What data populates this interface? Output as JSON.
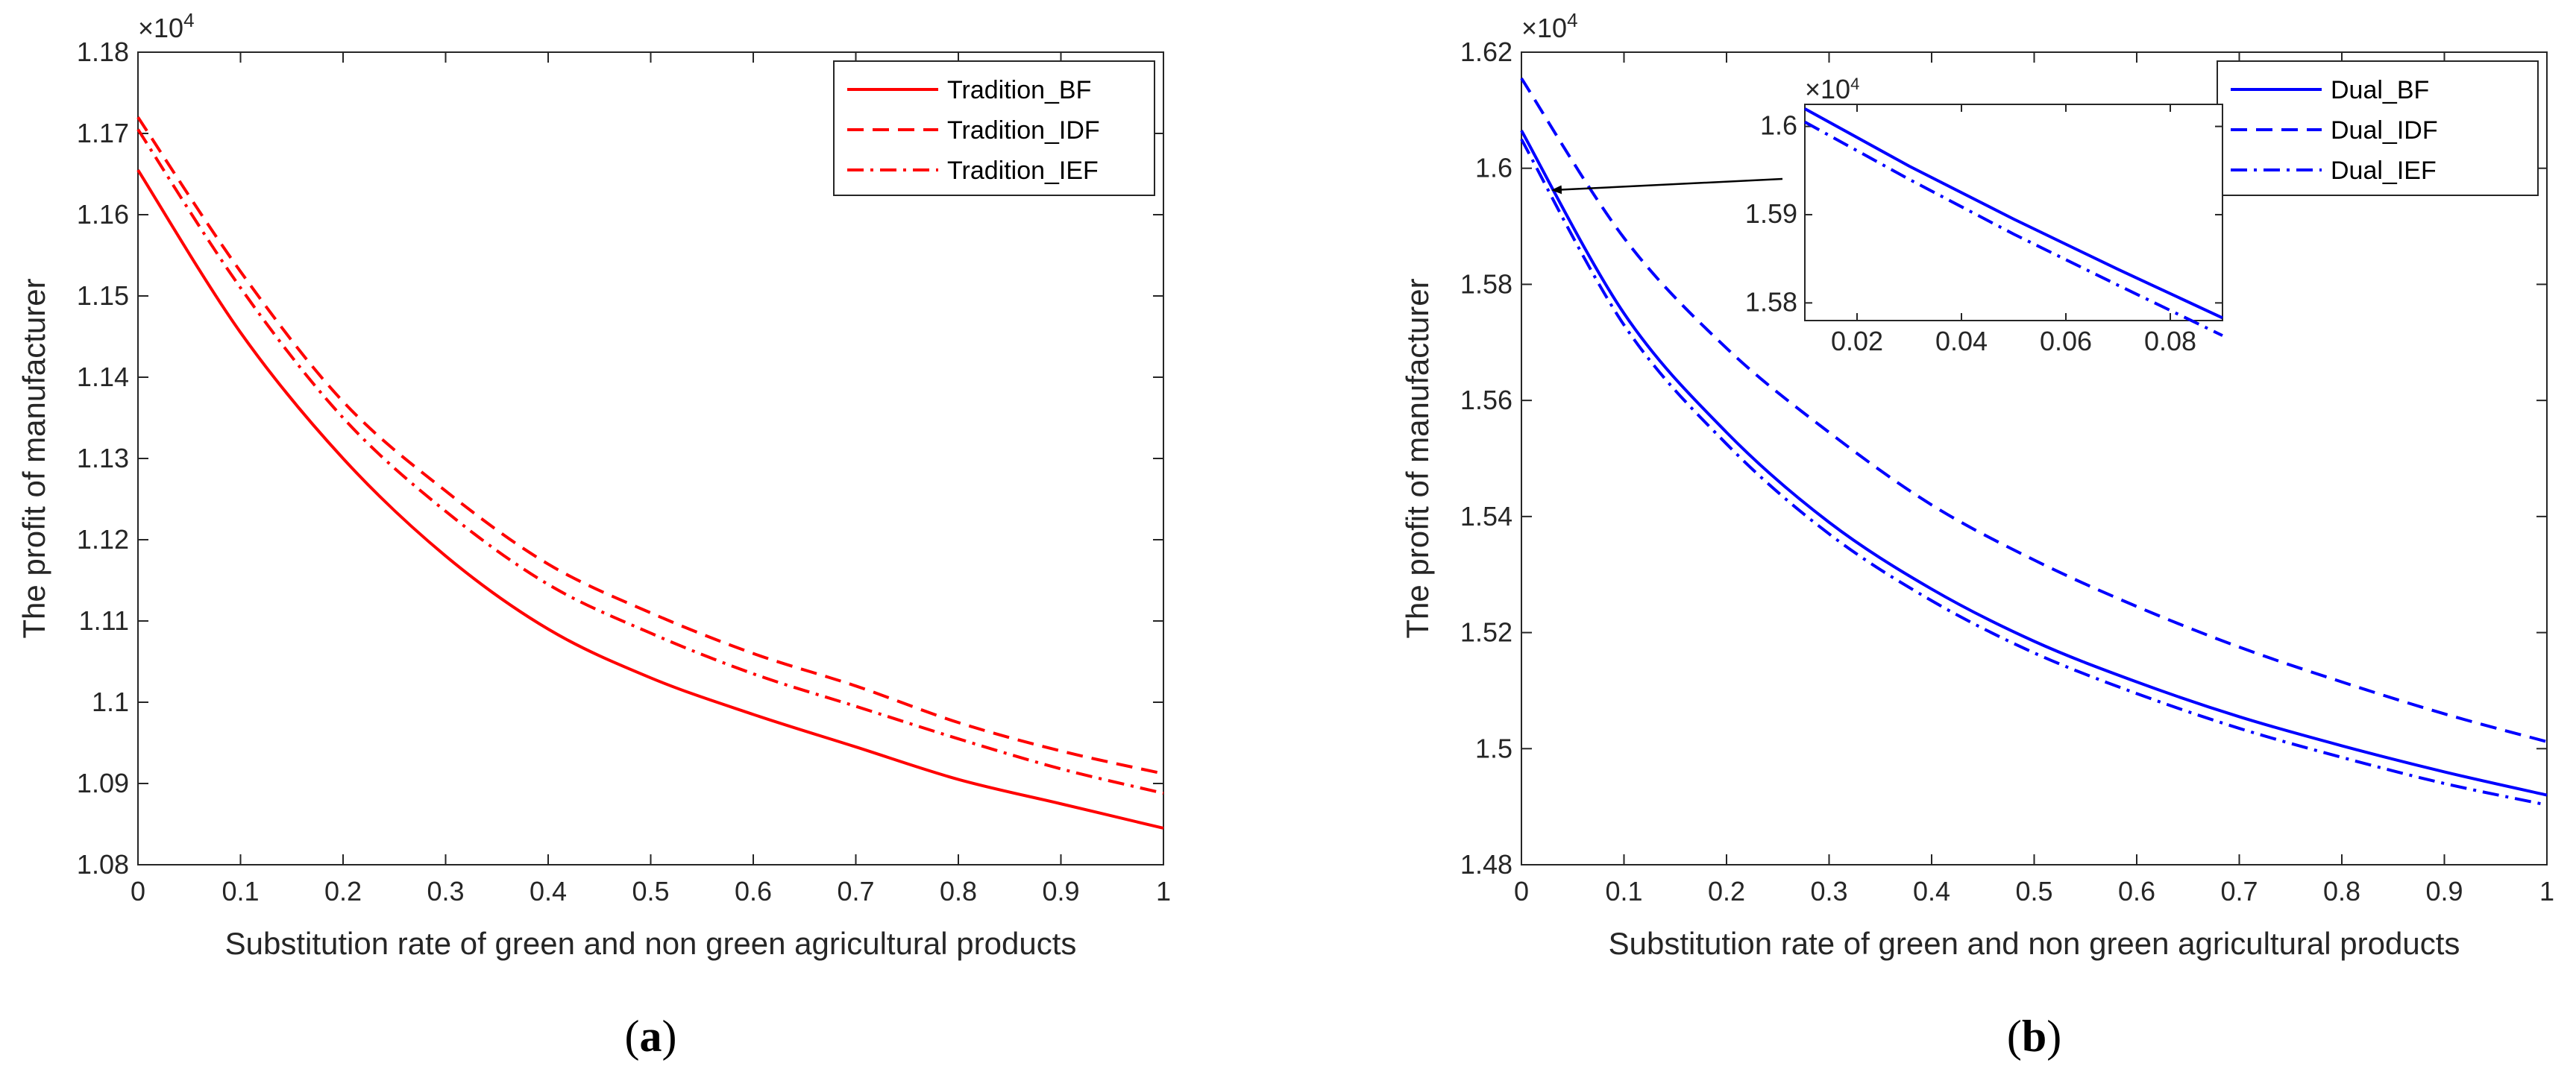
{
  "chart_data": [
    {
      "type": "line",
      "panel": "a",
      "caption_letter": "a",
      "xlabel": "Substitution rate of green and non green agricultural products",
      "ylabel": "The profit of manufacturer",
      "y_exponent_label": "×10",
      "y_exponent_power": "4",
      "xlim": [
        0,
        1
      ],
      "ylim": [
        1.08,
        1.18
      ],
      "x_ticks": [
        "0",
        "0.1",
        "0.2",
        "0.3",
        "0.4",
        "0.5",
        "0.6",
        "0.7",
        "0.8",
        "0.9",
        "1"
      ],
      "y_ticks": [
        "1.08",
        "1.09",
        "1.1",
        "1.11",
        "1.12",
        "1.13",
        "1.14",
        "1.15",
        "1.16",
        "1.17",
        "1.18"
      ],
      "color": "#ff0000",
      "legend_position": "top-right",
      "x": [
        0,
        0.1,
        0.2,
        0.3,
        0.4,
        0.5,
        0.6,
        0.7,
        0.8,
        0.9,
        1.0
      ],
      "series": [
        {
          "name": "Tradition_BF",
          "style": "solid",
          "values": [
            1.1655,
            1.1455,
            1.13,
            1.118,
            1.109,
            1.103,
            1.0985,
            1.0945,
            1.0905,
            1.0875,
            1.0845
          ]
        },
        {
          "name": "Tradition_IDF",
          "style": "dashed",
          "values": [
            1.172,
            1.153,
            1.137,
            1.126,
            1.117,
            1.111,
            1.106,
            1.102,
            1.0975,
            1.094,
            1.0912
          ]
        },
        {
          "name": "Tradition_IEF",
          "style": "dashdot",
          "values": [
            1.1705,
            1.151,
            1.135,
            1.1235,
            1.1145,
            1.1085,
            1.1035,
            1.0995,
            1.0955,
            1.0918,
            1.0888
          ]
        }
      ]
    },
    {
      "type": "line",
      "panel": "b",
      "caption_letter": "b",
      "xlabel": "Substitution rate of green and non green agricultural products",
      "ylabel": "The profit of manufacturer",
      "y_exponent_label": "×10",
      "y_exponent_power": "4",
      "xlim": [
        0,
        1
      ],
      "ylim": [
        1.48,
        1.62
      ],
      "x_ticks": [
        "0",
        "0.1",
        "0.2",
        "0.3",
        "0.4",
        "0.5",
        "0.6",
        "0.7",
        "0.8",
        "0.9",
        "1"
      ],
      "y_ticks": [
        "1.48",
        "1.5",
        "1.52",
        "1.54",
        "1.56",
        "1.58",
        "1.6",
        "1.62"
      ],
      "color": "#0000ff",
      "legend_position": "top-right",
      "x": [
        0,
        0.1,
        0.2,
        0.3,
        0.4,
        0.5,
        0.6,
        0.7,
        0.8,
        0.9,
        1.0
      ],
      "series": [
        {
          "name": "Dual_BF",
          "style": "solid",
          "values": [
            1.6065,
            1.575,
            1.5545,
            1.539,
            1.5275,
            1.5185,
            1.5115,
            1.5055,
            1.5005,
            1.496,
            1.492
          ]
        },
        {
          "name": "Dual_IDF",
          "style": "dashed",
          "values": [
            1.6155,
            1.588,
            1.569,
            1.5545,
            1.542,
            1.5325,
            1.5245,
            1.5175,
            1.5115,
            1.506,
            1.5012
          ]
        },
        {
          "name": "Dual_IEF",
          "style": "dashdot",
          "values": [
            1.605,
            1.573,
            1.5525,
            1.537,
            1.5255,
            1.5165,
            1.5095,
            1.5035,
            1.4985,
            1.494,
            1.4903
          ]
        }
      ],
      "inset": {
        "xlim": [
          0.01,
          0.09
        ],
        "ylim": [
          1.578,
          1.6025
        ],
        "x_ticks": [
          "0.02",
          "0.04",
          "0.06",
          "0.08"
        ],
        "y_ticks": [
          "1.58",
          "1.59",
          "1.6"
        ],
        "y_exponent_label": "×10",
        "y_exponent_power": "4",
        "x": [
          0.01,
          0.03,
          0.05,
          0.07,
          0.09
        ],
        "series": [
          {
            "name": "Dual_BF",
            "style": "solid",
            "values": [
              1.602,
              1.5955,
              1.5895,
              1.5838,
              1.5783
            ]
          },
          {
            "name": "Dual_IEF",
            "style": "dashdot",
            "values": [
              1.6005,
              1.594,
              1.5878,
              1.582,
              1.5763
            ]
          }
        ]
      }
    }
  ]
}
